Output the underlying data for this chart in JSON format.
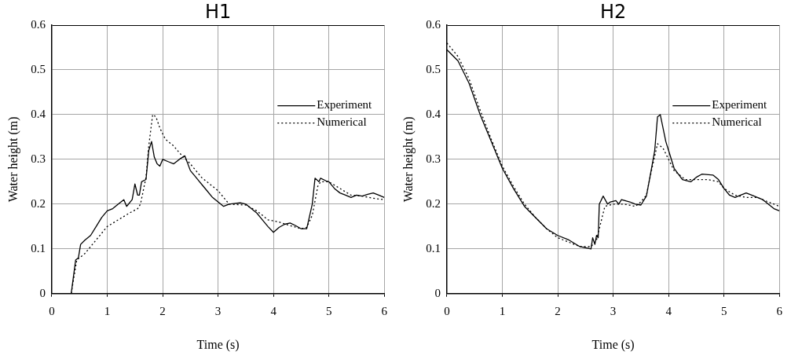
{
  "chart_data": [
    {
      "type": "line",
      "title": "H1",
      "xlabel": "Time (s)",
      "ylabel": "Water height (m)",
      "xlim": [
        0,
        6
      ],
      "xticks": [
        0,
        1,
        2,
        3,
        4,
        5,
        6
      ],
      "ylim": [
        0,
        0.6
      ],
      "yticks": [
        0,
        0.1,
        0.2,
        0.3,
        0.4,
        0.5,
        0.6
      ],
      "grid": true,
      "legend": "top right",
      "marker": "none",
      "series": [
        {
          "name": "Experiment",
          "color": "#000000",
          "line_style": "solid",
          "x": [
            0,
            0.35,
            0.43,
            0.48,
            0.52,
            0.6,
            0.7,
            0.8,
            0.9,
            1.0,
            1.1,
            1.2,
            1.3,
            1.35,
            1.45,
            1.5,
            1.55,
            1.58,
            1.62,
            1.7,
            1.75,
            1.8,
            1.85,
            1.9,
            1.95,
            2.0,
            2.1,
            2.2,
            2.3,
            2.4,
            2.5,
            2.6,
            2.7,
            2.8,
            2.9,
            3.0,
            3.1,
            3.2,
            3.4,
            3.5,
            3.6,
            3.7,
            3.8,
            3.9,
            4.0,
            4.1,
            4.2,
            4.3,
            4.4,
            4.5,
            4.6,
            4.7,
            4.75,
            4.82,
            4.85,
            4.95,
            5.0,
            5.1,
            5.2,
            5.3,
            5.4,
            5.5,
            5.6,
            5.7,
            5.8,
            5.9,
            6.0
          ],
          "values": [
            0,
            0,
            0.075,
            0.08,
            0.11,
            0.12,
            0.13,
            0.15,
            0.17,
            0.185,
            0.19,
            0.2,
            0.21,
            0.195,
            0.21,
            0.245,
            0.22,
            0.22,
            0.25,
            0.255,
            0.32,
            0.34,
            0.305,
            0.29,
            0.285,
            0.3,
            0.295,
            0.29,
            0.3,
            0.308,
            0.275,
            0.26,
            0.245,
            0.23,
            0.215,
            0.205,
            0.195,
            0.2,
            0.203,
            0.2,
            0.19,
            0.18,
            0.165,
            0.15,
            0.137,
            0.148,
            0.155,
            0.158,
            0.152,
            0.145,
            0.145,
            0.2,
            0.258,
            0.25,
            0.258,
            0.252,
            0.25,
            0.235,
            0.225,
            0.22,
            0.215,
            0.22,
            0.218,
            0.222,
            0.225,
            0.22,
            0.215
          ]
        },
        {
          "name": "Numerical",
          "color": "#000000",
          "line_style": "dotted",
          "x": [
            0,
            0.35,
            0.45,
            0.6,
            0.8,
            1.0,
            1.2,
            1.4,
            1.55,
            1.6,
            1.7,
            1.75,
            1.82,
            1.88,
            1.95,
            2.05,
            2.2,
            2.3,
            2.5,
            2.7,
            3.0,
            3.2,
            3.5,
            3.7,
            3.9,
            4.1,
            4.3,
            4.5,
            4.6,
            4.7,
            4.8,
            4.85,
            5.0,
            5.2,
            5.4,
            5.6,
            5.8,
            6.0
          ],
          "values": [
            0,
            0,
            0.075,
            0.09,
            0.12,
            0.15,
            0.165,
            0.18,
            0.19,
            0.2,
            0.26,
            0.33,
            0.4,
            0.395,
            0.37,
            0.345,
            0.33,
            0.315,
            0.29,
            0.26,
            0.23,
            0.2,
            0.198,
            0.185,
            0.165,
            0.16,
            0.152,
            0.145,
            0.148,
            0.175,
            0.24,
            0.25,
            0.25,
            0.235,
            0.22,
            0.218,
            0.213,
            0.21
          ]
        }
      ]
    },
    {
      "type": "line",
      "title": "H2",
      "xlabel": "Time (s)",
      "ylabel": "Water height (m)",
      "xlim": [
        0,
        6
      ],
      "xticks": [
        0,
        1,
        2,
        3,
        4,
        5,
        6
      ],
      "ylim": [
        0,
        0.6
      ],
      "yticks": [
        0,
        0.1,
        0.2,
        0.3,
        0.4,
        0.5,
        0.6
      ],
      "grid": true,
      "legend": "top right",
      "marker": "none",
      "series": [
        {
          "name": "Experiment",
          "color": "#000000",
          "line_style": "solid",
          "x": [
            0,
            0.2,
            0.4,
            0.6,
            0.8,
            1.0,
            1.2,
            1.4,
            1.6,
            1.8,
            2.0,
            2.2,
            2.4,
            2.6,
            2.63,
            2.67,
            2.7,
            2.73,
            2.75,
            2.82,
            2.9,
            2.95,
            3.05,
            3.1,
            3.15,
            3.3,
            3.4,
            3.5,
            3.6,
            3.7,
            3.75,
            3.8,
            3.85,
            3.95,
            4.0,
            4.1,
            4.25,
            4.4,
            4.5,
            4.6,
            4.8,
            4.9,
            5.0,
            5.1,
            5.2,
            5.3,
            5.4,
            5.5,
            5.7,
            5.9,
            6.0
          ],
          "values": [
            0.545,
            0.52,
            0.47,
            0.4,
            0.34,
            0.28,
            0.235,
            0.195,
            0.17,
            0.145,
            0.13,
            0.12,
            0.105,
            0.1,
            0.125,
            0.11,
            0.13,
            0.125,
            0.2,
            0.218,
            0.2,
            0.205,
            0.208,
            0.2,
            0.21,
            0.205,
            0.2,
            0.198,
            0.218,
            0.285,
            0.32,
            0.395,
            0.4,
            0.34,
            0.32,
            0.28,
            0.255,
            0.25,
            0.26,
            0.267,
            0.265,
            0.255,
            0.235,
            0.22,
            0.215,
            0.22,
            0.225,
            0.22,
            0.21,
            0.19,
            0.185
          ]
        },
        {
          "name": "Numerical",
          "color": "#000000",
          "line_style": "dotted",
          "x": [
            0,
            0.2,
            0.4,
            0.6,
            0.8,
            1.0,
            1.2,
            1.4,
            1.6,
            1.8,
            2.0,
            2.2,
            2.4,
            2.6,
            2.7,
            2.8,
            2.85,
            3.0,
            3.2,
            3.4,
            3.5,
            3.6,
            3.7,
            3.8,
            3.9,
            4.0,
            4.1,
            4.3,
            4.5,
            4.7,
            4.9,
            5.0,
            5.2,
            5.4,
            5.6,
            5.8,
            6.0
          ],
          "values": [
            0.56,
            0.53,
            0.48,
            0.41,
            0.345,
            0.285,
            0.24,
            0.2,
            0.17,
            0.145,
            0.125,
            0.115,
            0.105,
            0.105,
            0.12,
            0.17,
            0.195,
            0.2,
            0.2,
            0.195,
            0.205,
            0.22,
            0.28,
            0.335,
            0.325,
            0.3,
            0.275,
            0.255,
            0.255,
            0.255,
            0.25,
            0.235,
            0.22,
            0.215,
            0.215,
            0.205,
            0.195
          ]
        }
      ]
    }
  ]
}
